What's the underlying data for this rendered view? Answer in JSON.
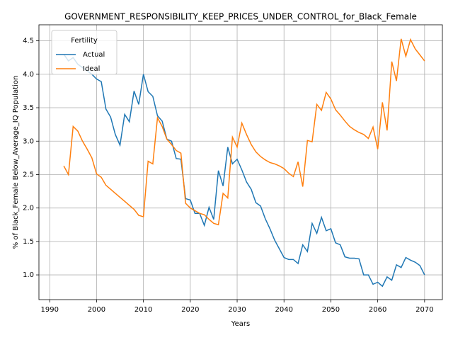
{
  "chart_data": {
    "type": "line",
    "title": "GOVERNMENT_RESPONSIBILITY_KEEP_PRICES_UNDER_CONTROL_for_Black_Female",
    "x_label": "Years",
    "y_label": "% of Black_Female Below_Average_IQ Population",
    "legend_title": "Fertility",
    "legend_position": "upper left",
    "grid": true,
    "x": [
      1993,
      1994,
      1995,
      1996,
      1997,
      1998,
      1999,
      2000,
      2001,
      2002,
      2003,
      2004,
      2005,
      2006,
      2007,
      2008,
      2009,
      2010,
      2011,
      2012,
      2013,
      2014,
      2015,
      2016,
      2017,
      2018,
      2019,
      2020,
      2021,
      2022,
      2023,
      2024,
      2025,
      2026,
      2027,
      2028,
      2029,
      2030,
      2031,
      2032,
      2033,
      2034,
      2035,
      2036,
      2037,
      2038,
      2039,
      2040,
      2041,
      2042,
      2043,
      2044,
      2045,
      2046,
      2047,
      2048,
      2049,
      2050,
      2051,
      2052,
      2053,
      2054,
      2055,
      2056,
      2057,
      2058,
      2059,
      2060,
      2061,
      2062,
      2063,
      2064,
      2065,
      2066,
      2067,
      2068,
      2069,
      2070
    ],
    "series": [
      {
        "name": "Actual",
        "color": "#1f77b4",
        "values": [
          4.3,
          4.2,
          4.25,
          4.15,
          4.1,
          4.05,
          4.0,
          3.93,
          3.89,
          3.48,
          3.36,
          3.1,
          2.94,
          3.4,
          3.29,
          3.75,
          3.55,
          4.0,
          3.74,
          3.67,
          3.38,
          3.3,
          3.03,
          3.0,
          2.74,
          2.73,
          2.14,
          2.12,
          1.92,
          1.92,
          1.74,
          2.01,
          1.83,
          2.56,
          2.33,
          2.91,
          2.66,
          2.73,
          2.57,
          2.39,
          2.28,
          2.08,
          2.03,
          1.84,
          1.69,
          1.52,
          1.39,
          1.26,
          1.23,
          1.23,
          1.17,
          1.45,
          1.35,
          1.77,
          1.62,
          1.86,
          1.66,
          1.69,
          1.48,
          1.45,
          1.27,
          1.25,
          1.25,
          1.24,
          1.0,
          1.0,
          0.86,
          0.89,
          0.83,
          0.97,
          0.92,
          1.15,
          1.11,
          1.26,
          1.22,
          1.19,
          1.14,
          1.0
        ]
      },
      {
        "name": "Ideal",
        "color": "#ff7f0e",
        "values": [
          2.63,
          2.5,
          3.22,
          3.15,
          3.0,
          2.88,
          2.75,
          2.51,
          2.46,
          2.34,
          2.28,
          2.22,
          2.16,
          2.1,
          2.04,
          1.98,
          1.89,
          1.87,
          2.7,
          2.66,
          3.35,
          3.22,
          3.03,
          2.95,
          2.86,
          2.82,
          2.07,
          2.0,
          1.96,
          1.92,
          1.9,
          1.83,
          1.77,
          1.75,
          2.22,
          2.15,
          3.06,
          2.91,
          3.27,
          3.1,
          2.95,
          2.84,
          2.77,
          2.72,
          2.68,
          2.66,
          2.63,
          2.59,
          2.52,
          2.47,
          2.69,
          2.32,
          3.01,
          2.99,
          3.55,
          3.46,
          3.73,
          3.63,
          3.47,
          3.39,
          3.3,
          3.22,
          3.17,
          3.13,
          3.1,
          3.04,
          3.21,
          2.88,
          3.58,
          3.16,
          4.19,
          3.9,
          4.53,
          4.27,
          4.52,
          4.38,
          4.29,
          4.2
        ]
      }
    ],
    "xlim": [
      1987.7,
      2073.8
    ],
    "xticks": [
      1990,
      2000,
      2010,
      2020,
      2030,
      2040,
      2050,
      2060,
      2070
    ],
    "ylim": [
      0.63,
      4.74
    ],
    "yticks": [
      {
        "value": 1,
        "label": "1.0"
      },
      1.5,
      {
        "value": 2,
        "label": "2.0"
      },
      2.5,
      {
        "value": 3,
        "label": "3.0"
      },
      3.5,
      {
        "value": 4,
        "label": "4.0"
      },
      4.5
    ]
  }
}
